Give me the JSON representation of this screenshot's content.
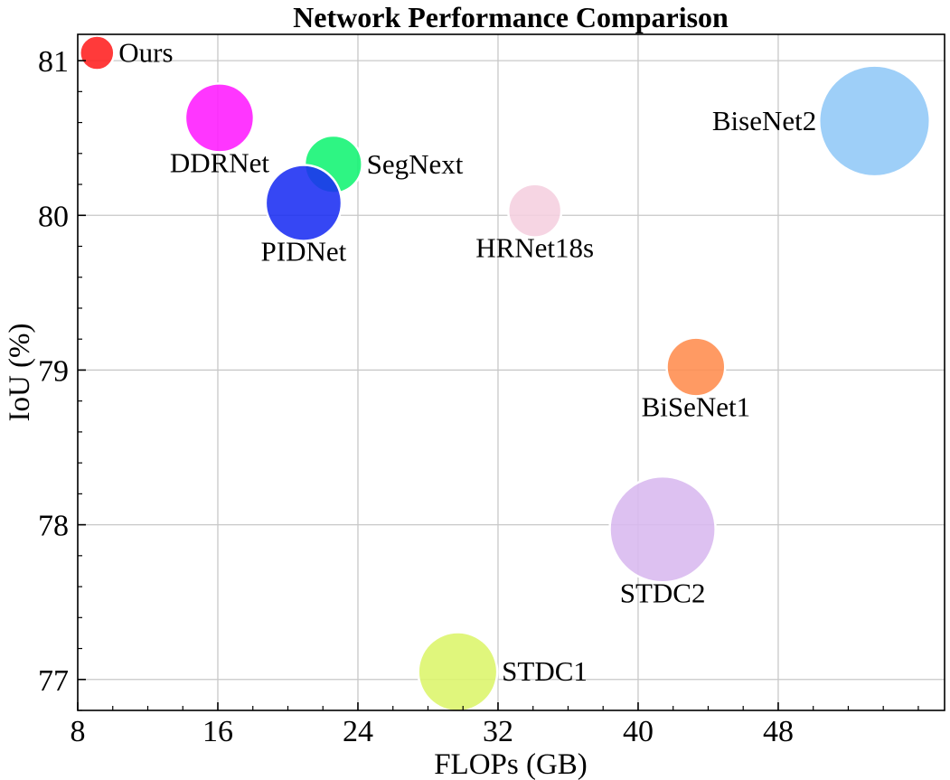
{
  "chart_data": {
    "type": "scatter",
    "title": "Network Performance Comparison",
    "xlabel": "FLOPs (GB)",
    "ylabel": "IoU (%)",
    "xlim": [
      8,
      57.5
    ],
    "ylim": [
      76.8,
      81.17
    ],
    "xticks": [
      8,
      16,
      24,
      32,
      40,
      48
    ],
    "yticks": [
      77,
      78,
      79,
      80,
      81
    ],
    "x_minor_step": 2,
    "y_minor_step": 0.2,
    "grid": true,
    "bubble_size_encoding": "circle area",
    "points": [
      {
        "label": "Ours",
        "x": 9.1,
        "y": 81.05,
        "size": 1.0,
        "color": "#ff1f1f",
        "label_side": "right"
      },
      {
        "label": "DDRNet",
        "x": 16.1,
        "y": 80.63,
        "size": 4.0,
        "color": "#ff1aff",
        "label_side": "below"
      },
      {
        "label": "SegNext",
        "x": 22.6,
        "y": 80.33,
        "size": 2.8,
        "color": "#11f472",
        "label_side": "right"
      },
      {
        "label": "PIDNet",
        "x": 20.9,
        "y": 80.08,
        "size": 4.9,
        "color": "#1a2ef2",
        "label_side": "below"
      },
      {
        "label": "HRNet18s",
        "x": 34.1,
        "y": 80.03,
        "size": 2.4,
        "color": "#f5cfdf",
        "label_side": "below"
      },
      {
        "label": "BiseNet2",
        "x": 53.5,
        "y": 80.61,
        "size": 10.4,
        "color": "#91c8f7",
        "label_side": "left"
      },
      {
        "label": "BiSeNet1",
        "x": 43.3,
        "y": 79.02,
        "size": 2.9,
        "color": "#ff8c4d",
        "label_side": "below"
      },
      {
        "label": "STDC2",
        "x": 41.4,
        "y": 77.97,
        "size": 9.5,
        "color": "#d8b8ef",
        "label_side": "below"
      },
      {
        "label": "STDC1",
        "x": 29.7,
        "y": 77.05,
        "size": 5.3,
        "color": "#dcf56a",
        "label_side": "right"
      }
    ]
  }
}
